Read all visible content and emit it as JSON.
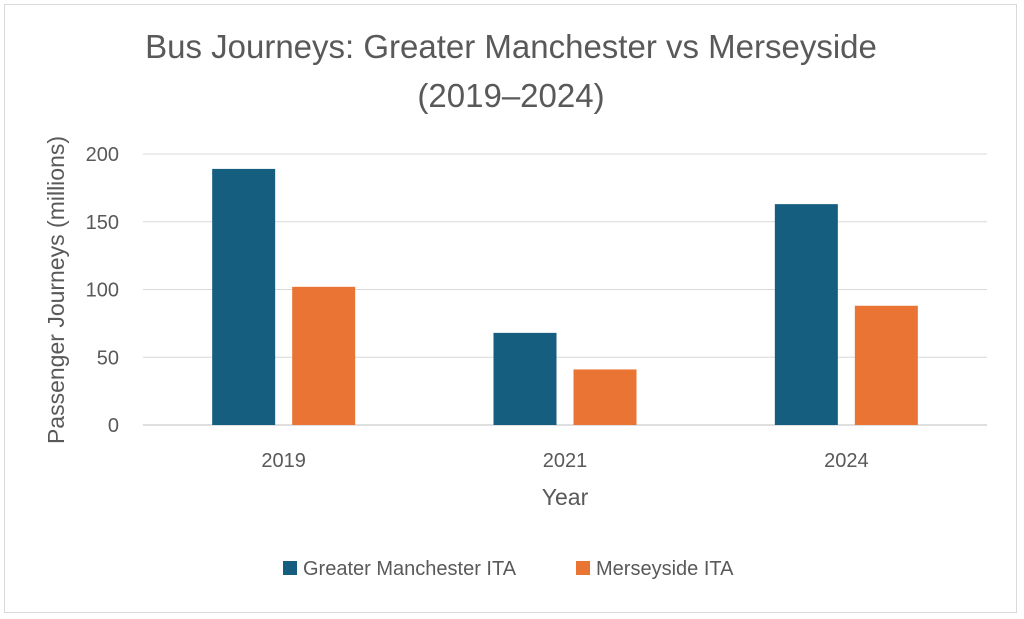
{
  "chart_data": {
    "type": "bar",
    "title_lines": [
      "Bus Journeys: Greater Manchester vs Merseyside",
      "(2019–2024)"
    ],
    "categories": [
      "2019",
      "2021",
      "2024"
    ],
    "series": [
      {
        "name": "Greater Manchester ITA",
        "color": "#155e80",
        "values": [
          189,
          68,
          163
        ]
      },
      {
        "name": "Merseyside ITA",
        "color": "#ea7434",
        "values": [
          102,
          41,
          88
        ]
      }
    ],
    "xlabel": "Year",
    "ylabel": "Passenger Journeys (millions)",
    "ylim": [
      0,
      200
    ],
    "yticks": [
      0,
      50,
      100,
      150,
      200
    ],
    "grid": true,
    "legend_position": "bottom"
  }
}
